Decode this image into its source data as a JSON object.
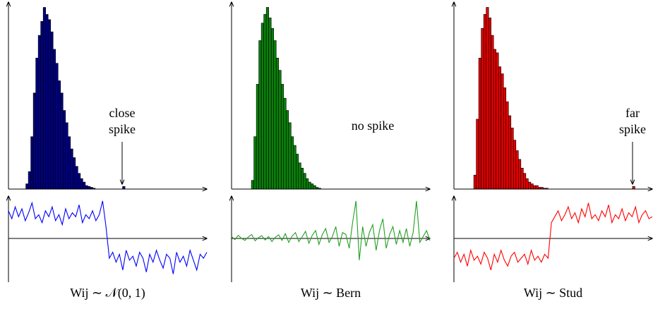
{
  "chart_data": [
    {
      "type": "histogram",
      "color": "#00007f",
      "bins": [
        7,
        8,
        9,
        10,
        11,
        12,
        13,
        14,
        15,
        16,
        17,
        18,
        19,
        20,
        21,
        22,
        23,
        24,
        25,
        26,
        27,
        28,
        29,
        30,
        31,
        32,
        33,
        34,
        35,
        36,
        37,
        38,
        39,
        40,
        41,
        42,
        43,
        44,
        45,
        46,
        47
      ],
      "counts": [
        3,
        10,
        30,
        55,
        75,
        88,
        96,
        104,
        100,
        97,
        90,
        80,
        72,
        62,
        55,
        45,
        38,
        30,
        23,
        18,
        13,
        9,
        6,
        4,
        2,
        1.5,
        1,
        0.5,
        0,
        0,
        0,
        0,
        0,
        0,
        0,
        0,
        0,
        0,
        0,
        1.5
      ],
      "xlim": [
        0,
        80
      ],
      "ylim": [
        0,
        105
      ],
      "annotation": [
        "close",
        "spike"
      ],
      "arrow": true
    },
    {
      "type": "line",
      "color": "#0000ff",
      "x": [
        0,
        1,
        2,
        3,
        4,
        5,
        6,
        7,
        8,
        9,
        10,
        11,
        12,
        13,
        14,
        15,
        16,
        17,
        18,
        19,
        20,
        21,
        22,
        23,
        24,
        25,
        26,
        27,
        28,
        29,
        30,
        31,
        32,
        33,
        34,
        35,
        36,
        37,
        38,
        39,
        40,
        41,
        42,
        43,
        44,
        45,
        46,
        47,
        48,
        49,
        50,
        51,
        52,
        53,
        54,
        55,
        56,
        57,
        58,
        59
      ],
      "values": [
        0.7,
        0.5,
        0.8,
        0.55,
        0.75,
        0.45,
        0.65,
        0.9,
        0.5,
        0.6,
        0.4,
        0.7,
        0.55,
        0.8,
        0.45,
        0.6,
        0.35,
        0.75,
        0.5,
        0.65,
        0.55,
        0.85,
        0.4,
        0.6,
        0.5,
        0.7,
        0.45,
        0.6,
        0.95,
        0.3,
        -0.5,
        -0.35,
        -0.6,
        -0.4,
        -0.8,
        -0.3,
        -0.55,
        -0.45,
        -0.7,
        -0.35,
        -0.5,
        -0.85,
        -0.4,
        -0.6,
        -0.3,
        -0.55,
        -0.75,
        -0.4,
        -0.5,
        -0.9,
        -0.35,
        -0.6,
        -0.45,
        -0.7,
        -0.3,
        -0.55,
        -0.8,
        -0.4,
        -0.5,
        -0.35
      ],
      "xlim": [
        0,
        59
      ],
      "ylim": [
        -1,
        1
      ],
      "xlabel": "Wij ∼ 𝒩(0, 1)"
    },
    {
      "type": "histogram",
      "color": "#0a7f0a",
      "bins": [
        8,
        9,
        10,
        11,
        12,
        13,
        14,
        15,
        16,
        17,
        18,
        19,
        20,
        21,
        22,
        23,
        24,
        25,
        26,
        27,
        28,
        29,
        30,
        31,
        32,
        33,
        34,
        35,
        36
      ],
      "counts": [
        5,
        30,
        60,
        85,
        95,
        100,
        104,
        98,
        92,
        85,
        75,
        68,
        60,
        52,
        45,
        38,
        30,
        25,
        20,
        15,
        12,
        9,
        6,
        4,
        3,
        2,
        1,
        0.5
      ],
      "xlim": [
        0,
        80
      ],
      "ylim": [
        0,
        105
      ],
      "annotation": [
        "no spike"
      ],
      "arrow": false
    },
    {
      "type": "line",
      "color": "#22a022",
      "x": [
        0,
        1,
        2,
        3,
        4,
        5,
        6,
        7,
        8,
        9,
        10,
        11,
        12,
        13,
        14,
        15,
        16,
        17,
        18,
        19,
        20,
        21,
        22,
        23,
        24,
        25,
        26,
        27,
        28,
        29,
        30,
        31,
        32,
        33,
        34,
        35,
        36,
        37,
        38,
        39,
        40,
        41,
        42,
        43,
        44,
        45,
        46,
        47,
        48,
        49,
        50,
        51,
        52,
        53,
        54,
        55,
        56,
        57,
        58,
        59
      ],
      "values": [
        0.05,
        -0.03,
        0.08,
        0,
        -0.05,
        0.04,
        0.1,
        -0.06,
        0.02,
        0.07,
        -0.04,
        0.05,
        -0.08,
        0.03,
        0.09,
        -0.05,
        0.12,
        -0.1,
        0.06,
        0.15,
        -0.08,
        0.04,
        0.18,
        -0.12,
        0.08,
        0.2,
        -0.15,
        0.1,
        0.25,
        -0.1,
        0.05,
        0.3,
        -0.2,
        0.15,
        0.1,
        -0.25,
        0.4,
        0.95,
        -0.55,
        0.3,
        -0.2,
        0.15,
        0.35,
        -0.3,
        0.2,
        0.5,
        -0.25,
        0.1,
        0.3,
        -0.15,
        0.2,
        -0.1,
        0.25,
        -0.2,
        0.15,
        0.95,
        -0.1,
        0.05,
        0.2,
        -0.05
      ],
      "xlim": [
        0,
        59
      ],
      "ylim": [
        -1,
        1
      ],
      "xlabel": "Wij ∼ Bern"
    },
    {
      "type": "histogram",
      "color": "#e00000",
      "bins": [
        8,
        9,
        10,
        11,
        12,
        13,
        14,
        15,
        16,
        17,
        18,
        19,
        20,
        21,
        22,
        23,
        24,
        25,
        26,
        27,
        28,
        29,
        30,
        31,
        32,
        33,
        34,
        35,
        36,
        37,
        38,
        39,
        40,
        41,
        42,
        43,
        44,
        45,
        46,
        47,
        48,
        49,
        50,
        51,
        52,
        53,
        54,
        55,
        56,
        57,
        58,
        59,
        60,
        61,
        62,
        63,
        64,
        65,
        66,
        67,
        68,
        69,
        70,
        71,
        72,
        73
      ],
      "counts": [
        8,
        40,
        75,
        92,
        100,
        104,
        98,
        88,
        80,
        78,
        70,
        66,
        58,
        50,
        42,
        35,
        28,
        22,
        17,
        12,
        9,
        6,
        4,
        3,
        2,
        2,
        1,
        1,
        0.5,
        0.5,
        0,
        0,
        0,
        0,
        0,
        0,
        0,
        0,
        0,
        0,
        0,
        0,
        0,
        0,
        0,
        0,
        0,
        0,
        0,
        0,
        0,
        0,
        0,
        0,
        0,
        0,
        0,
        0,
        0,
        0,
        0,
        0,
        0,
        0,
        1.5
      ],
      "xlim": [
        0,
        80
      ],
      "ylim": [
        0,
        105
      ],
      "annotation": [
        "far",
        "spike"
      ],
      "arrow": true
    },
    {
      "type": "line",
      "color": "#ff0000",
      "x": [
        0,
        1,
        2,
        3,
        4,
        5,
        6,
        7,
        8,
        9,
        10,
        11,
        12,
        13,
        14,
        15,
        16,
        17,
        18,
        19,
        20,
        21,
        22,
        23,
        24,
        25,
        26,
        27,
        28,
        29,
        30,
        31,
        32,
        33,
        34,
        35,
        36,
        37,
        38,
        39,
        40,
        41,
        42,
        43,
        44,
        45,
        46,
        47,
        48,
        49,
        50,
        51,
        52,
        53,
        54,
        55,
        56,
        57,
        58,
        59
      ],
      "values": [
        -0.5,
        -0.35,
        -0.6,
        -0.4,
        -0.7,
        -0.3,
        -0.55,
        -0.45,
        -0.65,
        -0.35,
        -0.5,
        -0.8,
        -0.4,
        -0.6,
        -0.3,
        -0.55,
        -0.7,
        -0.45,
        -0.35,
        -0.6,
        -0.5,
        -0.4,
        -0.65,
        -0.3,
        -0.55,
        -0.45,
        -0.6,
        -0.4,
        -0.5,
        0.4,
        0.55,
        0.7,
        0.45,
        0.6,
        0.8,
        0.5,
        0.65,
        0.4,
        0.75,
        0.55,
        0.9,
        0.5,
        0.6,
        0.45,
        0.7,
        0.55,
        0.85,
        0.4,
        0.6,
        0.5,
        0.75,
        0.45,
        0.65,
        0.55,
        0.8,
        0.4,
        0.6,
        0.7,
        0.5,
        0.55
      ],
      "xlim": [
        0,
        59
      ],
      "ylim": [
        -1,
        1
      ],
      "xlabel": "Wij ∼ Stud"
    }
  ]
}
